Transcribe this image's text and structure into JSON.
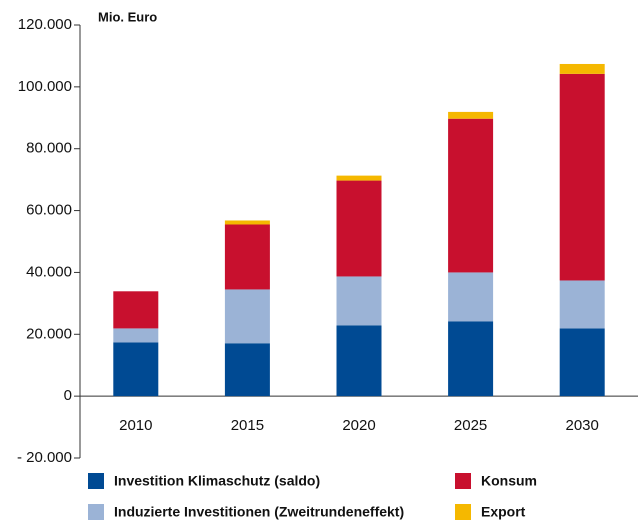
{
  "chart_data": {
    "type": "stacked_bar",
    "y_unit_label": "Mio. Euro",
    "categories": [
      "2010",
      "2015",
      "2020",
      "2025",
      "2030"
    ],
    "series": [
      {
        "name": "Investition Klimaschutz (saldo)",
        "color": "#004a93",
        "values": [
          17400,
          17100,
          22900,
          24200,
          21900
        ]
      },
      {
        "name": "Induzierte Investitionen (Zweitrundeneffekt)",
        "color": "#9bb3d6",
        "values": [
          4500,
          17400,
          15800,
          15800,
          15500
        ]
      },
      {
        "name": "Konsum",
        "color": "#c8102e",
        "values": [
          12000,
          21000,
          31000,
          49700,
          66800
        ]
      },
      {
        "name": "Export",
        "color": "#f5b800",
        "values": [
          0,
          1300,
          1600,
          2200,
          3200
        ]
      }
    ],
    "ylim": [
      -20000,
      120000
    ],
    "yticks": [
      {
        "value": -20000,
        "label": "- 20.000"
      },
      0,
      {
        "value": 20000,
        "label": "20.000"
      },
      {
        "value": 40000,
        "label": "40.000"
      },
      {
        "value": 60000,
        "label": "60.000"
      },
      {
        "value": 80000,
        "label": "80.000"
      },
      {
        "value": 100000,
        "label": "100.000"
      },
      {
        "value": 120000,
        "label": "120.000"
      }
    ],
    "grid": false
  }
}
